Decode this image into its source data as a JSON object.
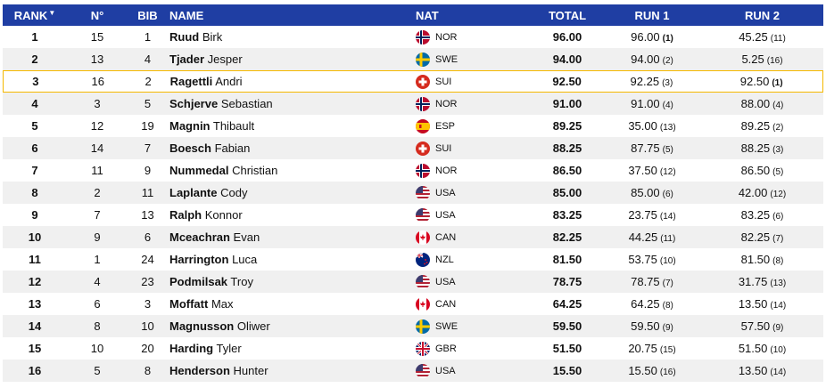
{
  "headers": {
    "rank": "RANK",
    "no": "N°",
    "bib": "BIB",
    "name": "NAME",
    "nat": "NAT",
    "total": "TOTAL",
    "run1": "RUN 1",
    "run2": "RUN 2"
  },
  "sort_glyph": "▼",
  "rows": [
    {
      "rank": "1",
      "no": "15",
      "bib": "1",
      "last": "Ruud",
      "first": "Birk",
      "nat": "NOR",
      "total": "96.00",
      "run1": "96.00",
      "run1_place": "(1)",
      "run2": "45.25",
      "run2_place": "(11)"
    },
    {
      "rank": "2",
      "no": "13",
      "bib": "4",
      "last": "Tjader",
      "first": "Jesper",
      "nat": "SWE",
      "total": "94.00",
      "run1": "94.00",
      "run1_place": "(2)",
      "run2": "5.25",
      "run2_place": "(16)"
    },
    {
      "rank": "3",
      "no": "16",
      "bib": "2",
      "last": "Ragettli",
      "first": "Andri",
      "nat": "SUI",
      "total": "92.50",
      "run1": "92.25",
      "run1_place": "(3)",
      "run2": "92.50",
      "run2_place": "(1)"
    },
    {
      "rank": "4",
      "no": "3",
      "bib": "5",
      "last": "Schjerve",
      "first": "Sebastian",
      "nat": "NOR",
      "total": "91.00",
      "run1": "91.00",
      "run1_place": "(4)",
      "run2": "88.00",
      "run2_place": "(4)"
    },
    {
      "rank": "5",
      "no": "12",
      "bib": "19",
      "last": "Magnin",
      "first": "Thibault",
      "nat": "ESP",
      "total": "89.25",
      "run1": "35.00",
      "run1_place": "(13)",
      "run2": "89.25",
      "run2_place": "(2)"
    },
    {
      "rank": "6",
      "no": "14",
      "bib": "7",
      "last": "Boesch",
      "first": "Fabian",
      "nat": "SUI",
      "total": "88.25",
      "run1": "87.75",
      "run1_place": "(5)",
      "run2": "88.25",
      "run2_place": "(3)"
    },
    {
      "rank": "7",
      "no": "11",
      "bib": "9",
      "last": "Nummedal",
      "first": "Christian",
      "nat": "NOR",
      "total": "86.50",
      "run1": "37.50",
      "run1_place": "(12)",
      "run2": "86.50",
      "run2_place": "(5)"
    },
    {
      "rank": "8",
      "no": "2",
      "bib": "11",
      "last": "Laplante",
      "first": "Cody",
      "nat": "USA",
      "total": "85.00",
      "run1": "85.00",
      "run1_place": "(6)",
      "run2": "42.00",
      "run2_place": "(12)"
    },
    {
      "rank": "9",
      "no": "7",
      "bib": "13",
      "last": "Ralph",
      "first": "Konnor",
      "nat": "USA",
      "total": "83.25",
      "run1": "23.75",
      "run1_place": "(14)",
      "run2": "83.25",
      "run2_place": "(6)"
    },
    {
      "rank": "10",
      "no": "9",
      "bib": "6",
      "last": "Mceachran",
      "first": "Evan",
      "nat": "CAN",
      "total": "82.25",
      "run1": "44.25",
      "run1_place": "(11)",
      "run2": "82.25",
      "run2_place": "(7)"
    },
    {
      "rank": "11",
      "no": "1",
      "bib": "24",
      "last": "Harrington",
      "first": "Luca",
      "nat": "NZL",
      "total": "81.50",
      "run1": "53.75",
      "run1_place": "(10)",
      "run2": "81.50",
      "run2_place": "(8)"
    },
    {
      "rank": "12",
      "no": "4",
      "bib": "23",
      "last": "Podmilsak",
      "first": "Troy",
      "nat": "USA",
      "total": "78.75",
      "run1": "78.75",
      "run1_place": "(7)",
      "run2": "31.75",
      "run2_place": "(13)"
    },
    {
      "rank": "13",
      "no": "6",
      "bib": "3",
      "last": "Moffatt",
      "first": "Max",
      "nat": "CAN",
      "total": "64.25",
      "run1": "64.25",
      "run1_place": "(8)",
      "run2": "13.50",
      "run2_place": "(14)"
    },
    {
      "rank": "14",
      "no": "8",
      "bib": "10",
      "last": "Magnusson",
      "first": "Oliwer",
      "nat": "SWE",
      "total": "59.50",
      "run1": "59.50",
      "run1_place": "(9)",
      "run2": "57.50",
      "run2_place": "(9)"
    },
    {
      "rank": "15",
      "no": "10",
      "bib": "20",
      "last": "Harding",
      "first": "Tyler",
      "nat": "GBR",
      "total": "51.50",
      "run1": "20.75",
      "run1_place": "(15)",
      "run2": "51.50",
      "run2_place": "(10)"
    },
    {
      "rank": "16",
      "no": "5",
      "bib": "8",
      "last": "Henderson",
      "first": "Hunter",
      "nat": "USA",
      "total": "15.50",
      "run1": "15.50",
      "run1_place": "(16)",
      "run2": "13.50",
      "run2_place": "(14)"
    }
  ],
  "highlighted_rank": "3",
  "colors": {
    "header_bg": "#1f3ea3",
    "highlight_border": "#f5b800",
    "alt_row_bg": "#f0f0f0"
  },
  "flag_icons": {
    "NOR": "norway-flag-icon",
    "SWE": "sweden-flag-icon",
    "SUI": "switzerland-flag-icon",
    "ESP": "spain-flag-icon",
    "USA": "usa-flag-icon",
    "CAN": "canada-flag-icon",
    "NZL": "new-zealand-flag-icon",
    "GBR": "great-britain-flag-icon"
  }
}
